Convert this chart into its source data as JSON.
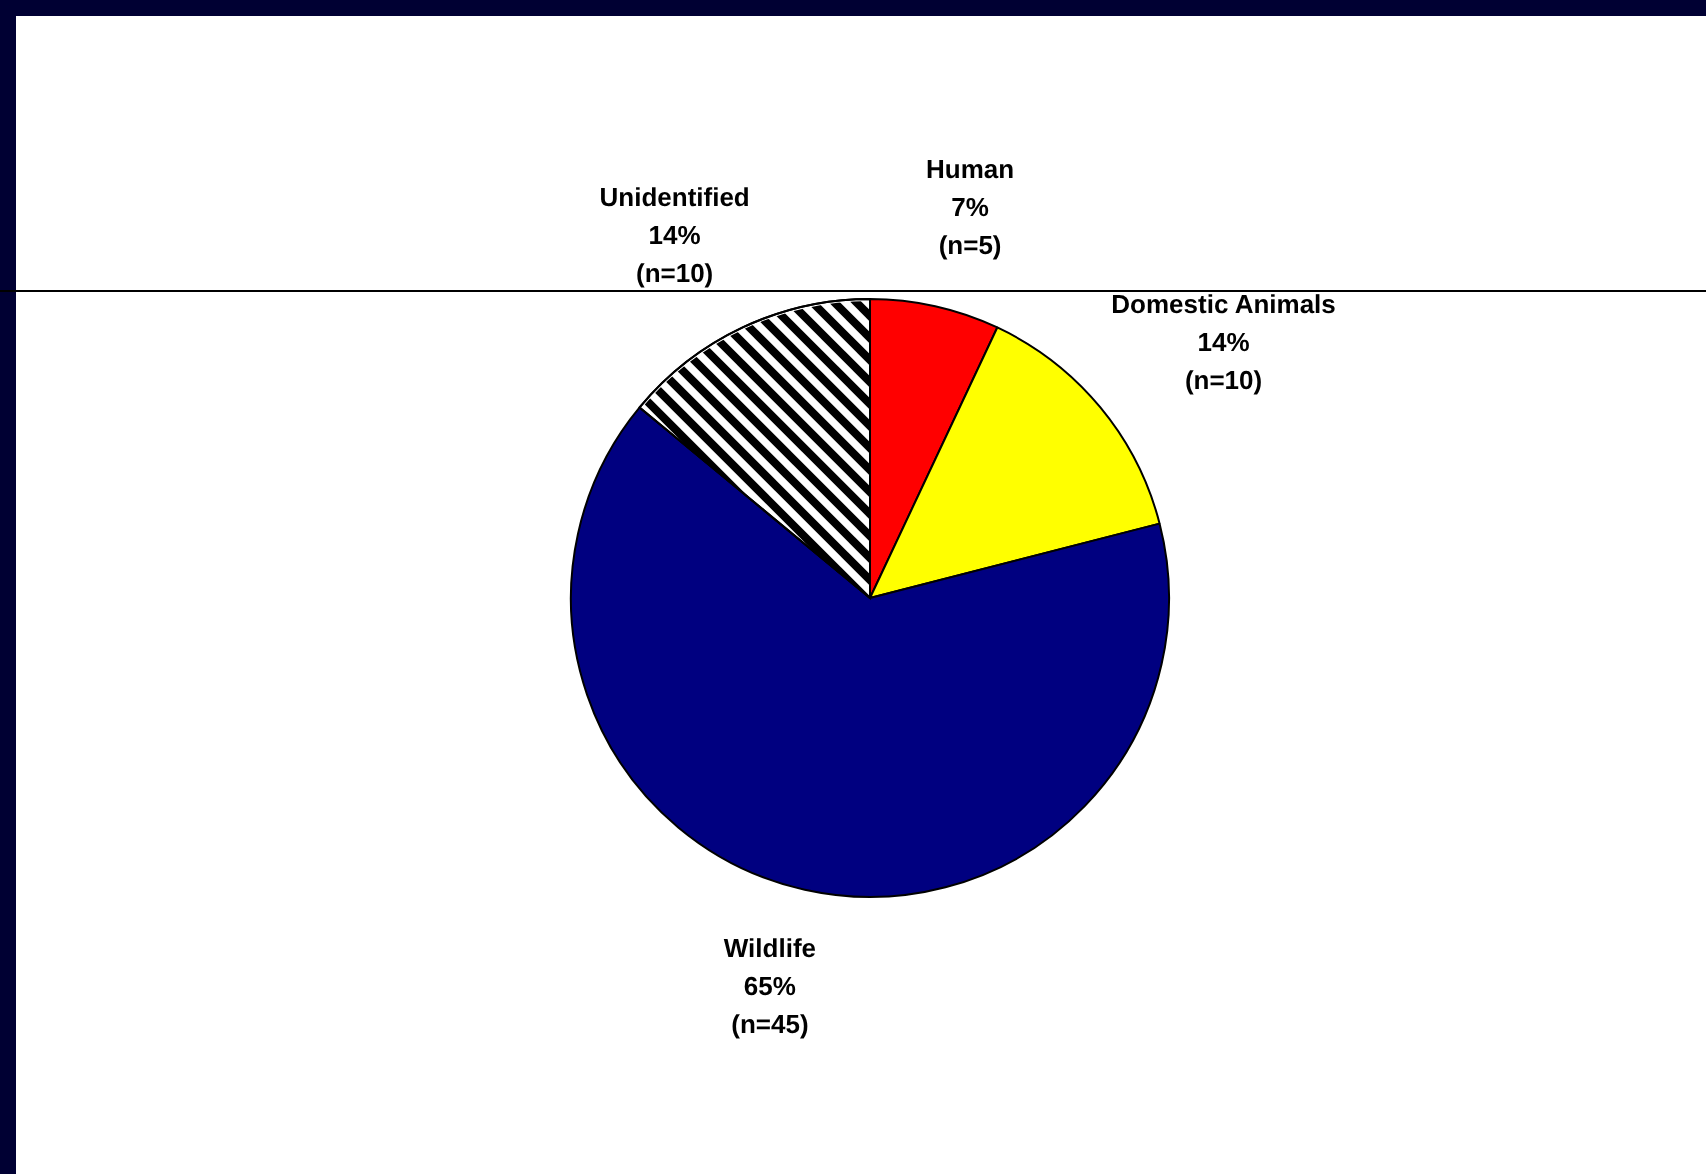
{
  "chart_data": {
    "type": "pie",
    "categories": [
      "Human",
      "Domestic Animals",
      "Wildlife",
      "Unidentified"
    ],
    "values": [
      7,
      14,
      65,
      14
    ],
    "colors": [
      "#ff0000",
      "#ffff00",
      "#000080",
      "#ffffff"
    ],
    "value_labels": [
      "7%\n(n=5)",
      "14%\n(n=10)",
      "65%\n(n=45)",
      "14%\n(n=10)"
    ],
    "legend": false
  }
}
